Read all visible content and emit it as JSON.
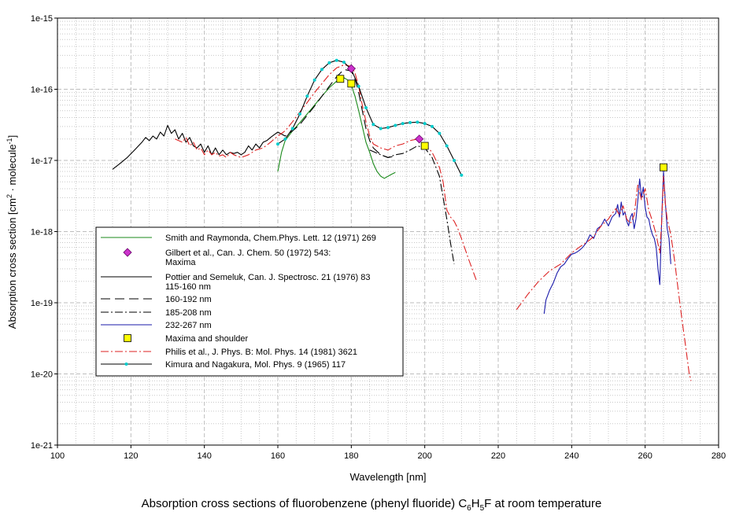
{
  "chart_data": {
    "type": "line",
    "caption": {
      "text": "Absorption cross sections of fluorobenzene (phenyl fluoride) C",
      "sub1": "6",
      "mid": "H",
      "sub2": "5",
      "tail": "F at room temperature"
    },
    "xlabel": "Wavelength [nm]",
    "ylabel": {
      "prefix": "Absorption cross section [cm",
      "exp1": "2",
      "mid": " · molecule",
      "exp2": "-1",
      "suffix": "]"
    },
    "xlim": [
      100,
      280
    ],
    "ylim": [
      1e-21,
      1e-15
    ],
    "yscale": "log",
    "grid": true,
    "legend_position": "lower-left",
    "x_ticks": [
      100,
      120,
      140,
      160,
      180,
      200,
      220,
      240,
      260,
      280
    ],
    "x_tick_labels": [
      "100",
      "120",
      "140",
      "160",
      "180",
      "200",
      "220",
      "240",
      "260",
      "280"
    ],
    "y_ticks": [
      1e-21,
      1e-20,
      1e-19,
      1e-18,
      1e-17,
      1e-16,
      1e-15
    ],
    "y_tick_labels": [
      "1e-21",
      "1e-20",
      "1e-19",
      "1e-18",
      "1e-17",
      "1e-16",
      "1e-15"
    ],
    "legend": [
      {
        "id": "smith",
        "label": "Smith and Raymonda, Chem.Phys. Lett. 12 (1971) 269",
        "kind": "line",
        "color": "#1b8a1b",
        "dash": ""
      },
      {
        "id": "gilbert",
        "label": "Gilbert et al., Can. J. Chem. 50 (1972) 543:",
        "label2": "Maxima",
        "kind": "diamond",
        "color": "#cc33cc"
      },
      {
        "id": "pottier1",
        "label": "Pottier and Semeluk, Can. J. Spectrosc. 21 (1976) 83",
        "label2": "115-160 nm",
        "kind": "line",
        "color": "#000000",
        "dash": ""
      },
      {
        "id": "pottier2",
        "label": "160-192 nm",
        "kind": "line",
        "color": "#000000",
        "dash": "12,6"
      },
      {
        "id": "pottier3",
        "label": "185-208 nm",
        "kind": "line",
        "color": "#000000",
        "dash": "10,3,2,3"
      },
      {
        "id": "pottier4",
        "label": "232-267 nm",
        "kind": "line",
        "color": "#1a1aaa",
        "dash": ""
      },
      {
        "id": "pottierMax",
        "label": "Maxima and shoulder",
        "kind": "square",
        "color": "#ffff00"
      },
      {
        "id": "philis",
        "label": "Philis et al., J. Phys. B: Mol. Phys. 14 (1981) 3621",
        "kind": "line",
        "color": "#dd2222",
        "dash": "10,3,2,3"
      },
      {
        "id": "kimura",
        "label": "Kimura and Nagakura, Mol. Phys. 9 (1965) 117",
        "kind": "line-dots",
        "color": "#000000",
        "marker_color": "#00cccc"
      }
    ],
    "series": [
      {
        "id": "smith",
        "color": "#1b8a1b",
        "dash": "",
        "x": [
          160,
          161,
          162,
          164,
          166,
          168,
          170,
          172,
          174,
          176,
          178,
          179,
          180,
          181,
          182,
          183,
          184,
          185,
          186,
          187,
          188,
          189,
          190,
          191,
          192
        ],
        "y": [
          7e-18,
          1.3e-17,
          1.9e-17,
          2.6e-17,
          3.4e-17,
          4.5e-17,
          6e-17,
          8e-17,
          1.05e-16,
          1.3e-16,
          1.45e-16,
          1.35e-16,
          1.15e-16,
          8e-17,
          5e-17,
          3e-17,
          1.8e-17,
          1.3e-17,
          9e-18,
          7e-18,
          6e-18,
          5.6e-18,
          6e-18,
          6.4e-18,
          6.8e-18
        ]
      },
      {
        "id": "pottier1",
        "color": "#000000",
        "dash": "",
        "x": [
          115,
          117,
          119,
          121,
          123,
          124,
          125,
          126,
          127,
          128,
          129,
          130,
          131,
          132,
          133,
          134,
          135,
          136,
          137,
          138,
          139,
          140,
          141,
          142,
          143,
          144,
          145,
          146,
          147,
          148,
          149,
          150,
          151,
          152,
          153,
          154,
          155,
          156,
          157,
          158,
          159,
          160
        ],
        "y": [
          7.5e-18,
          9e-18,
          1.1e-17,
          1.4e-17,
          1.8e-17,
          2.1e-17,
          1.9e-17,
          2.2e-17,
          2e-17,
          2.5e-17,
          2.2e-17,
          3.1e-17,
          2.4e-17,
          2.7e-17,
          2e-17,
          2.4e-17,
          1.8e-17,
          2.1e-17,
          1.6e-17,
          1.5e-17,
          1.7e-17,
          1.3e-17,
          1.6e-17,
          1.2e-17,
          1.5e-17,
          1.2e-17,
          1.4e-17,
          1.2e-17,
          1.3e-17,
          1.25e-17,
          1.3e-17,
          1.2e-17,
          1.3e-17,
          1.6e-17,
          1.4e-17,
          1.7e-17,
          1.5e-17,
          1.8e-17,
          1.9e-17,
          2.1e-17,
          2.3e-17,
          2.5e-17
        ]
      },
      {
        "id": "pottier2",
        "color": "#000000",
        "dash": "12,6",
        "x": [
          160,
          162,
          164,
          166,
          168,
          170,
          172,
          174,
          176,
          178,
          180,
          181,
          182,
          183,
          184,
          185,
          186,
          188,
          190,
          192
        ],
        "y": [
          2.5e-17,
          2.2e-17,
          2.6e-17,
          3.2e-17,
          4.3e-17,
          5.8e-17,
          8e-17,
          1.1e-16,
          1.5e-16,
          1.9e-16,
          1.8e-16,
          1.4e-16,
          9e-17,
          5e-17,
          2.8e-17,
          1.9e-17,
          1.5e-17,
          1.2e-17,
          1.1e-17,
          1.15e-17
        ]
      },
      {
        "id": "pottier3",
        "color": "#000000",
        "dash": "10,3,2,3",
        "x": [
          185,
          188,
          190,
          192,
          194,
          196,
          198,
          200,
          202,
          204,
          205,
          206,
          207,
          208
        ],
        "y": [
          1.4e-17,
          1.2e-17,
          1.1e-17,
          1.2e-17,
          1.25e-17,
          1.4e-17,
          1.6e-17,
          1.5e-17,
          1.1e-17,
          6e-18,
          3e-18,
          1.5e-18,
          7e-19,
          3.5e-19
        ]
      },
      {
        "id": "pottier4",
        "color": "#1a1aaa",
        "dash": "",
        "x": [
          232.5,
          233,
          234,
          235,
          236,
          237,
          238,
          239,
          240,
          241,
          242,
          243,
          244,
          245,
          246,
          247,
          248,
          249,
          250,
          251,
          252,
          252.5,
          253,
          253.5,
          254,
          254.5,
          255,
          255.5,
          256,
          256.5,
          257,
          257.5,
          258,
          258.5,
          259,
          259.5,
          260,
          260.5,
          261,
          261.5,
          262,
          262.5,
          263,
          263.5,
          264,
          264.5,
          265,
          265.5,
          266,
          266.5,
          267
        ],
        "y": [
          7e-20,
          1.1e-19,
          1.5e-19,
          1.9e-19,
          2.6e-19,
          3.2e-19,
          3.5e-19,
          4.2e-19,
          4.8e-19,
          5e-19,
          5.4e-19,
          6e-19,
          7e-19,
          9e-19,
          8e-19,
          1.1e-18,
          1.2e-18,
          1.5e-18,
          1.2e-18,
          1.6e-18,
          1.8e-18,
          2.4e-18,
          1.6e-18,
          2.6e-18,
          1.7e-18,
          1.9e-18,
          1.4e-18,
          1.2e-18,
          1.6e-18,
          1.8e-18,
          1.1e-18,
          1.5e-18,
          2.7e-18,
          5.5e-18,
          3e-18,
          4.2e-18,
          2.2e-18,
          1.6e-18,
          1.5e-18,
          1.1e-18,
          9e-19,
          8e-19,
          6e-19,
          3e-19,
          1.8e-19,
          1.5e-18,
          7e-18,
          2.6e-18,
          1.1e-18,
          8e-19,
          3.5e-19
        ]
      },
      {
        "id": "philis",
        "color": "#dd2222",
        "dash": "10,3,2,3",
        "x": [
          132,
          134,
          135,
          136,
          137,
          138,
          139,
          140,
          141,
          142,
          143,
          144,
          145,
          146,
          147,
          148,
          150,
          152,
          154,
          156,
          158,
          160,
          162,
          164,
          166,
          168,
          170,
          172,
          174,
          176,
          178,
          180,
          181,
          182,
          183,
          184,
          185,
          186,
          188,
          190,
          192,
          194,
          196,
          198,
          200,
          202,
          204,
          205,
          206,
          207,
          208,
          209,
          210,
          212,
          214
        ],
        "y": [
          2e-17,
          1.8e-17,
          2.1e-17,
          1.6e-17,
          1.8e-17,
          1.4e-17,
          1.5e-17,
          1.2e-17,
          1.4e-17,
          1.2e-17,
          1.3e-17,
          1.15e-17,
          1.2e-17,
          1.1e-17,
          1.3e-17,
          1.2e-17,
          1.1e-17,
          1.2e-17,
          1.4e-17,
          1.5e-17,
          1.8e-17,
          2.2e-17,
          2.6e-17,
          3.5e-17,
          4.8e-17,
          6.5e-17,
          9e-17,
          1.2e-16,
          1.6e-16,
          2e-16,
          2.2e-16,
          2.1e-16,
          1.7e-16,
          1.1e-16,
          6e-17,
          3.5e-17,
          2.2e-17,
          1.7e-17,
          1.5e-17,
          1.4e-17,
          1.6e-17,
          1.7e-17,
          1.9e-17,
          2e-17,
          1.7e-17,
          1.3e-17,
          8e-18,
          5e-18,
          2e-18,
          1.6e-18,
          1.4e-18,
          1.1e-18,
          8e-19,
          4e-19,
          2.1e-19
        ]
      },
      {
        "id": "philisLong",
        "color": "#dd2222",
        "dash": "10,3,2,3",
        "x": [
          225,
          228,
          231,
          234,
          237,
          240,
          242,
          244,
          246,
          248,
          250,
          251,
          252,
          253,
          254,
          255,
          256,
          257,
          258,
          259,
          260,
          261,
          262,
          263,
          264,
          264.5,
          265,
          265.5,
          266,
          267,
          268,
          269,
          270,
          271,
          272,
          272.5
        ],
        "y": [
          8e-20,
          1.3e-19,
          2e-19,
          2.8e-19,
          3.5e-19,
          5e-19,
          6e-19,
          7e-19,
          8.5e-19,
          1.2e-18,
          1.5e-18,
          1.8e-18,
          2.1e-18,
          1.7e-18,
          2.3e-18,
          1.5e-18,
          1.3e-18,
          1.7e-18,
          4.5e-18,
          2.8e-18,
          4e-18,
          2e-18,
          1.4e-18,
          9e-19,
          5e-19,
          1.4e-18,
          6e-18,
          2.5e-18,
          1.5e-18,
          9e-19,
          4e-19,
          1.5e-19,
          6e-20,
          2.5e-20,
          1e-20,
          8e-21
        ]
      },
      {
        "id": "kimura",
        "color": "#000000",
        "dash": "",
        "markers": true,
        "marker_color": "#00cccc",
        "x": [
          160,
          162,
          164,
          166,
          168,
          170,
          172,
          174,
          176,
          178,
          180,
          182,
          184,
          186,
          188,
          190,
          192,
          194,
          196,
          198,
          200,
          202,
          204,
          206,
          208,
          210
        ],
        "y": [
          1.7e-17,
          2e-17,
          2.8e-17,
          4.5e-17,
          8e-17,
          1.35e-16,
          1.9e-16,
          2.35e-16,
          2.55e-16,
          2.4e-16,
          1.9e-16,
          1.1e-16,
          5.5e-17,
          3.2e-17,
          2.8e-17,
          2.9e-17,
          3.1e-17,
          3.3e-17,
          3.4e-17,
          3.45e-17,
          3.3e-17,
          3e-17,
          2.4e-17,
          1.6e-17,
          1e-17,
          6.2e-18
        ]
      }
    ],
    "markers": {
      "gilbert": {
        "color": "#cc33cc",
        "points": [
          [
            180,
            1.95e-16
          ],
          [
            198.5,
            2e-17
          ]
        ]
      },
      "pottierMax": {
        "color": "#ffff00",
        "points": [
          [
            177,
            1.4e-16
          ],
          [
            180,
            1.2e-16
          ],
          [
            200,
            1.6e-17
          ],
          [
            265,
            8e-18
          ]
        ]
      }
    }
  }
}
